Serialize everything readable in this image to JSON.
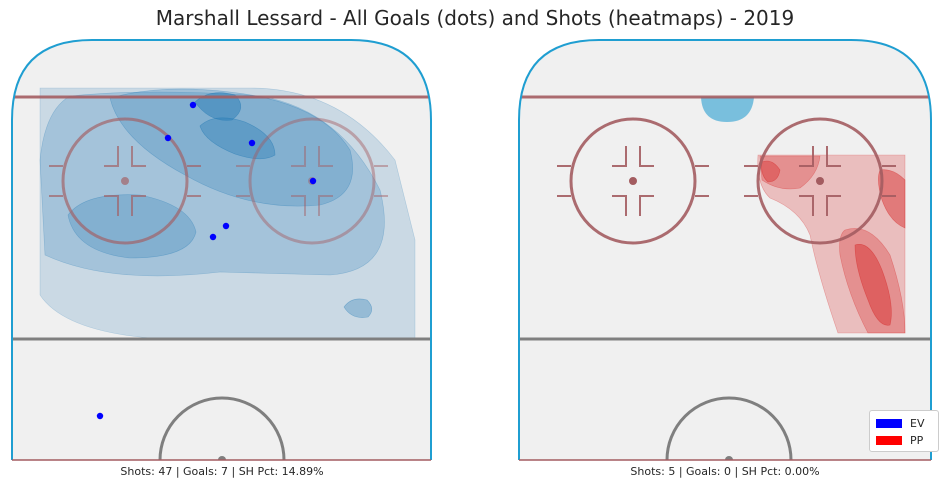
{
  "chart_data": [
    {
      "type": "scatter",
      "panel": "left",
      "title": "Marshall Lessard - All Goals (dots) and Shots (heatmaps) - 2019",
      "caption": "Shots: 47 | Goals: 7 | SH Pct: 14.89%",
      "heatmap_color": "#1f77b4",
      "goal_color": "#0000ff",
      "goals": [
        {
          "x": 193,
          "y": 105
        },
        {
          "x": 168,
          "y": 138
        },
        {
          "x": 252,
          "y": 143
        },
        {
          "x": 313,
          "y": 181
        },
        {
          "x": 226,
          "y": 226
        },
        {
          "x": 213,
          "y": 237
        },
        {
          "x": 100,
          "y": 416
        }
      ],
      "xlim": [
        12,
        431
      ],
      "ylim": [
        40,
        460
      ]
    },
    {
      "type": "scatter",
      "panel": "right",
      "caption": "Shots: 5 | Goals: 0 | SH Pct: 0.00%",
      "heatmap_color": "#d62728",
      "goals": [],
      "xlim": [
        519,
        931
      ],
      "ylim": [
        40,
        460
      ]
    }
  ],
  "legend": {
    "placement": "lower-right",
    "items": [
      {
        "label": "EV",
        "color": "#0000ff"
      },
      {
        "label": "PP",
        "color": "#ff0000"
      }
    ]
  },
  "colors": {
    "rink_fill": "#f0f0f0",
    "boards": "#1f9ed1",
    "goal_line": "#a35c60",
    "circle": "#a35c60",
    "blue_line": "#7f7f7f"
  }
}
